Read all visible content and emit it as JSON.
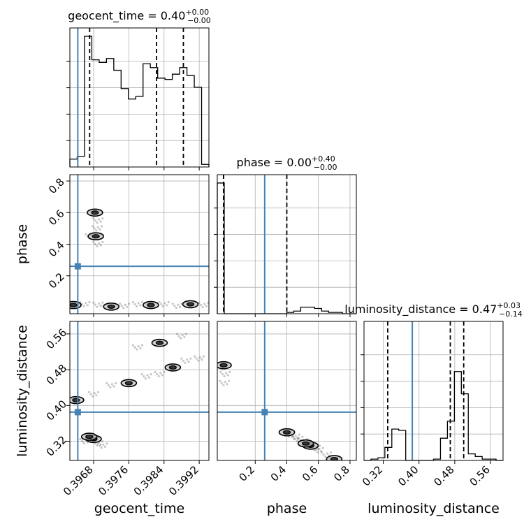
{
  "chart_data": {
    "type": "corner",
    "truth_color": "#4682b4",
    "line_color": "#000000",
    "grid": true,
    "parameters": [
      {
        "name": "geocent_time",
        "range": [
          0.39626,
          0.39942
        ],
        "ticks": [
          "0.3968",
          "0.3976",
          "0.3984",
          "0.3992"
        ],
        "tick_values": [
          0.3968,
          0.3976,
          0.3984,
          0.3992
        ],
        "truth": 0.39644,
        "title": {
          "prefix": "geocent_time = 0.40",
          "plus": "+0.00",
          "minus": "−0.00"
        },
        "quantiles": [
          0.39671,
          0.39823,
          0.39884
        ],
        "hist": [
          0.06,
          0.08,
          1.0,
          0.82,
          0.8,
          0.83,
          0.74,
          0.6,
          0.52,
          0.54,
          0.79,
          0.76,
          0.68,
          0.67,
          0.71,
          0.76,
          0.7,
          0.61,
          0.02
        ]
      },
      {
        "name": "phase",
        "range": [
          -0.04,
          0.84
        ],
        "ticks": [
          "0.2",
          "0.4",
          "0.6",
          "0.8"
        ],
        "tick_values": [
          0.2,
          0.4,
          0.6,
          0.8
        ],
        "truth": 0.26,
        "title": {
          "prefix": "phase = 0.00",
          "plus": "+0.40",
          "minus": "−0.00"
        },
        "quantiles": [
          0.0,
          0.0,
          0.4
        ],
        "hist": [
          1.0,
          0.0,
          0.0,
          0.0,
          0.0,
          0.0,
          0.0,
          0.0,
          0.0,
          0.0,
          0.01,
          0.02,
          0.05,
          0.05,
          0.04,
          0.02,
          0.01,
          0.01,
          0.0,
          0.0
        ]
      },
      {
        "name": "luminosity_distance",
        "range": [
          0.277,
          0.588
        ],
        "ticks": [
          "0.32",
          "0.40",
          "0.48",
          "0.56"
        ],
        "tick_values": [
          0.32,
          0.4,
          0.48,
          0.56
        ],
        "truth": 0.385,
        "title": {
          "prefix": "luminosity_distance = 0.47",
          "plus": "+0.03",
          "minus": "−0.14"
        },
        "quantiles": [
          0.33,
          0.47,
          0.5
        ],
        "hist": [
          0.0,
          0.01,
          0.02,
          0.1,
          0.24,
          0.23,
          0.0,
          0.0,
          0.0,
          0.0,
          0.01,
          0.17,
          0.3,
          0.68,
          0.51,
          0.05,
          0.03,
          0.01,
          0.01,
          0.0
        ]
      }
    ],
    "samples_2d": {
      "time_phase": {
        "x": [
          0.39634,
          0.3966,
          0.3969,
          0.3972,
          0.3975,
          0.3978,
          0.3981,
          0.3984,
          0.3987,
          0.399,
          0.3993,
          0.3969,
          0.39685,
          0.39688,
          0.3969,
          0.39683,
          0.39673
        ],
        "y": [
          0.015,
          0.02,
          0.017,
          0.005,
          0.01,
          0.02,
          0.015,
          0.02,
          0.01,
          0.02,
          0.015,
          0.4,
          0.45,
          0.5,
          0.55,
          0.6,
          0.45
        ]
      },
      "time_dist": {
        "x": [
          0.3964,
          0.3968,
          0.3972,
          0.3976,
          0.398,
          0.3983,
          0.3986,
          0.3989,
          0.3992,
          0.3968,
          0.3969,
          0.397,
          0.3967,
          0.3966,
          0.3978,
          0.3983,
          0.3988
        ],
        "y": [
          0.412,
          0.425,
          0.445,
          0.45,
          0.465,
          0.47,
          0.485,
          0.5,
          0.505,
          0.325,
          0.315,
          0.31,
          0.33,
          0.32,
          0.53,
          0.54,
          0.555
        ]
      },
      "phase_dist": {
        "x": [
          0.0,
          0.01,
          0.005,
          0.4,
          0.45,
          0.5,
          0.55,
          0.6,
          0.65,
          0.7,
          0.42,
          0.47,
          0.52,
          0.58
        ],
        "y": [
          0.49,
          0.47,
          0.45,
          0.34,
          0.33,
          0.32,
          0.31,
          0.3,
          0.29,
          0.28,
          0.335,
          0.325,
          0.315,
          0.305
        ]
      }
    }
  }
}
